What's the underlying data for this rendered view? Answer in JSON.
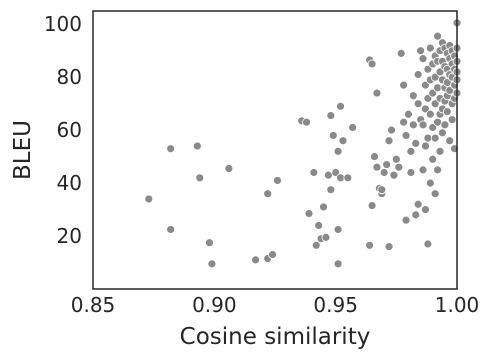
{
  "chart_data": {
    "type": "scatter",
    "xlabel": "Cosine similarity",
    "ylabel": "BLEU",
    "xlim": [
      0.85,
      1.0
    ],
    "ylim": [
      0,
      105
    ],
    "xticks": [
      0.85,
      0.9,
      0.95,
      1.0
    ],
    "xtick_labels": [
      "0.85",
      "0.90",
      "0.95",
      "1.00"
    ],
    "yticks": [
      20,
      40,
      60,
      80,
      100
    ],
    "ytick_labels": [
      "20",
      "40",
      "60",
      "80",
      "100"
    ],
    "grid": false,
    "point_color": "#8a8a8a",
    "series": [
      {
        "points": [
          [
            0.873,
            34
          ],
          [
            0.882,
            53
          ],
          [
            0.882,
            22.5
          ],
          [
            0.893,
            54
          ],
          [
            0.894,
            42
          ],
          [
            0.898,
            17.5
          ],
          [
            0.899,
            9.5
          ],
          [
            0.906,
            45.5
          ],
          [
            0.917,
            11
          ],
          [
            0.922,
            11.5
          ],
          [
            0.922,
            36
          ],
          [
            0.924,
            13
          ],
          [
            0.926,
            41
          ],
          [
            0.936,
            63.5
          ],
          [
            0.938,
            63
          ],
          [
            0.939,
            28.5
          ],
          [
            0.941,
            44
          ],
          [
            0.942,
            16.5
          ],
          [
            0.943,
            24
          ],
          [
            0.944,
            19
          ],
          [
            0.945,
            31
          ],
          [
            0.946,
            19.5
          ],
          [
            0.947,
            43
          ],
          [
            0.948,
            37.5
          ],
          [
            0.948,
            65.5
          ],
          [
            0.949,
            58
          ],
          [
            0.95,
            44
          ],
          [
            0.951,
            52
          ],
          [
            0.952,
            69
          ],
          [
            0.951,
            22.5
          ],
          [
            0.951,
            9.5
          ],
          [
            0.952,
            42
          ],
          [
            0.953,
            56
          ],
          [
            0.955,
            42
          ],
          [
            0.957,
            61
          ],
          [
            0.964,
            86.5
          ],
          [
            0.965,
            85
          ],
          [
            0.964,
            16.5
          ],
          [
            0.965,
            31.5
          ],
          [
            0.966,
            50
          ],
          [
            0.967,
            46
          ],
          [
            0.967,
            74
          ],
          [
            0.968,
            38
          ],
          [
            0.969,
            36
          ],
          [
            0.969,
            37.5
          ],
          [
            0.97,
            44
          ],
          [
            0.971,
            47
          ],
          [
            0.972,
            16
          ],
          [
            0.972,
            56
          ],
          [
            0.973,
            60
          ],
          [
            0.974,
            43
          ],
          [
            0.975,
            49
          ],
          [
            0.976,
            46
          ],
          [
            0.977,
            89
          ],
          [
            0.978,
            77
          ],
          [
            0.978,
            63
          ],
          [
            0.979,
            58
          ],
          [
            0.979,
            26
          ],
          [
            0.98,
            66
          ],
          [
            0.981,
            52
          ],
          [
            0.981,
            44
          ],
          [
            0.982,
            73
          ],
          [
            0.982,
            62
          ],
          [
            0.983,
            28
          ],
          [
            0.983,
            55
          ],
          [
            0.984,
            81
          ],
          [
            0.984,
            70
          ],
          [
            0.984,
            32
          ],
          [
            0.985,
            90
          ],
          [
            0.985,
            64
          ],
          [
            0.986,
            62
          ],
          [
            0.986,
            45
          ],
          [
            0.986,
            87
          ],
          [
            0.987,
            77
          ],
          [
            0.987,
            68
          ],
          [
            0.987,
            30
          ],
          [
            0.987,
            54
          ],
          [
            0.988,
            83
          ],
          [
            0.988,
            72
          ],
          [
            0.988,
            57
          ],
          [
            0.988,
            17
          ],
          [
            0.989,
            91
          ],
          [
            0.989,
            79
          ],
          [
            0.989,
            66
          ],
          [
            0.989,
            40
          ],
          [
            0.99,
            85
          ],
          [
            0.99,
            74
          ],
          [
            0.99,
            61
          ],
          [
            0.99,
            49
          ],
          [
            0.991,
            88
          ],
          [
            0.991,
            80
          ],
          [
            0.991,
            70
          ],
          [
            0.991,
            57
          ],
          [
            0.991,
            36
          ],
          [
            0.992,
            95.5
          ],
          [
            0.992,
            86
          ],
          [
            0.992,
            76
          ],
          [
            0.992,
            63
          ],
          [
            0.992,
            45
          ],
          [
            0.993,
            90
          ],
          [
            0.993,
            82
          ],
          [
            0.993,
            72
          ],
          [
            0.993,
            66
          ],
          [
            0.993,
            52
          ],
          [
            0.994,
            93
          ],
          [
            0.994,
            86
          ],
          [
            0.994,
            79
          ],
          [
            0.994,
            68
          ],
          [
            0.994,
            59
          ],
          [
            0.995,
            91
          ],
          [
            0.995,
            84
          ],
          [
            0.995,
            76
          ],
          [
            0.995,
            71
          ],
          [
            0.995,
            62
          ],
          [
            0.996,
            89
          ],
          [
            0.996,
            83
          ],
          [
            0.996,
            78
          ],
          [
            0.996,
            73
          ],
          [
            0.996,
            67
          ],
          [
            0.997,
            92
          ],
          [
            0.997,
            87
          ],
          [
            0.997,
            81
          ],
          [
            0.997,
            75
          ],
          [
            0.997,
            56
          ],
          [
            0.998,
            90
          ],
          [
            0.998,
            85
          ],
          [
            0.998,
            80
          ],
          [
            0.998,
            70
          ],
          [
            0.998,
            64
          ],
          [
            0.999,
            88
          ],
          [
            0.999,
            83
          ],
          [
            0.999,
            77
          ],
          [
            0.999,
            72
          ],
          [
            0.999,
            53
          ],
          [
            1.0,
            100.5
          ],
          [
            1.0,
            91
          ],
          [
            1.0,
            86
          ],
          [
            1.0,
            82
          ],
          [
            1.0,
            79
          ],
          [
            1.0,
            74
          ]
        ]
      }
    ]
  }
}
